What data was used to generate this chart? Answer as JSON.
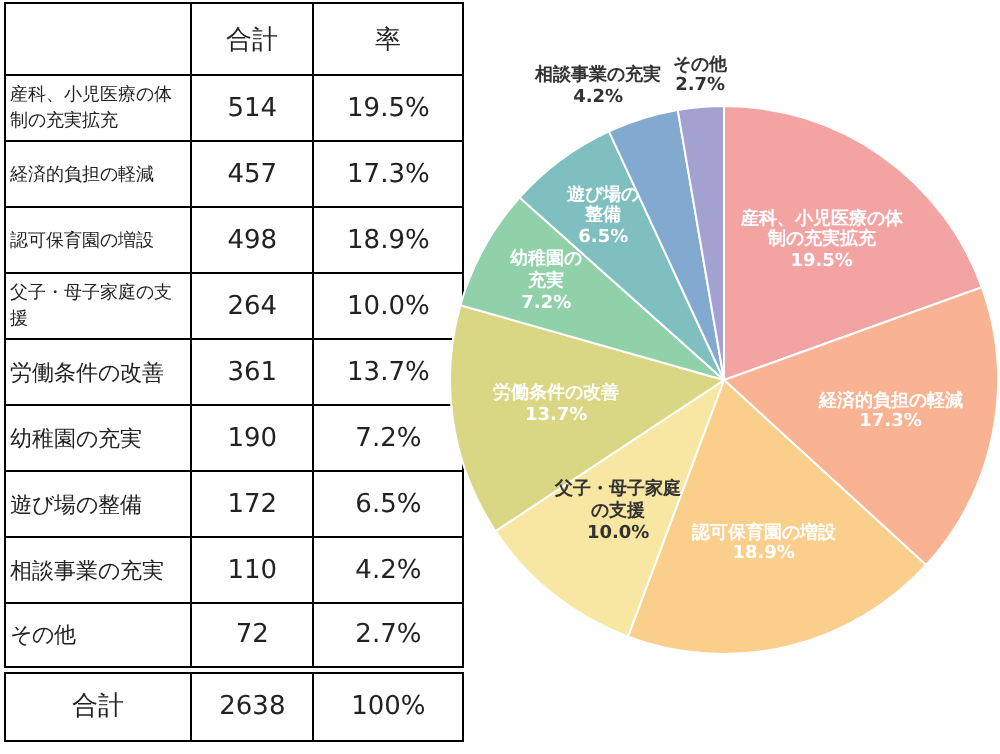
{
  "chart_data": [
    {
      "type": "other",
      "categories": [
        "産科、小児医療の体制の充実拡充",
        "経済的負担の軽減",
        "認可保育園の増設",
        "父子・母子家庭の支援",
        "労働条件の改善",
        "幼稚園の充実",
        "遊び場の整備",
        "相談事業の充実",
        "その他"
      ],
      "series": [
        {
          "name": "合計",
          "values": [
            514,
            457,
            498,
            264,
            361,
            190,
            172,
            110,
            72
          ]
        }
      ],
      "data_labels": true,
      "annotations": [
        "率",
        "合計"
      ],
      "totals": [
        "2638",
        "100%"
      ]
    },
    {
      "type": "pie",
      "categories": [
        "産科、小児医療の体制の充実拡充",
        "経済的負担の軽減",
        "認可保育園の増設",
        "父子・母子家庭の支援",
        "労働条件の改善",
        "幼稚園の充実",
        "遊び場の整備",
        "相談事業の充実",
        "その他"
      ],
      "values": [
        19.5,
        17.3,
        18.9,
        10.0,
        13.7,
        7.2,
        6.5,
        4.2,
        2.7
      ],
      "value_labels": [
        "19.5%",
        "17.3%",
        "18.9%",
        "10.0%",
        "13.7%",
        "7.2%",
        "6.5%",
        "4.2%",
        "2.7%"
      ],
      "colors": [
        "#f4a3a3",
        "#f9b393",
        "#facf8c",
        "#f8e7a2",
        "#d9d783",
        "#91d1a9",
        "#7fbfbf",
        "#82a9cf",
        "#a3a1cf"
      ]
    }
  ]
}
